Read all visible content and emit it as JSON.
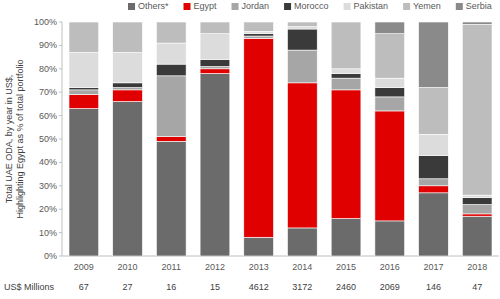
{
  "chart_data": {
    "type": "bar",
    "stacked": true,
    "legend": "top",
    "grid": false,
    "y_label": [
      "Total UAE ODA, by year in US$,",
      "Highlighting Egypt as % of total portfolio"
    ],
    "categories": [
      "2009",
      "2010",
      "2011",
      "2012",
      "2013",
      "2014",
      "2015",
      "2016",
      "2017",
      "2018"
    ],
    "ylim": [
      0,
      100
    ],
    "yticks": [
      {
        "value": 0,
        "label": "0%"
      },
      {
        "value": 10,
        "label": "10%"
      },
      {
        "value": 20,
        "label": "20%"
      },
      {
        "value": 30,
        "label": "30%"
      },
      {
        "value": 40,
        "label": "40%"
      },
      {
        "value": 50,
        "label": "50%"
      },
      {
        "value": 60,
        "label": "60%"
      },
      {
        "value": 70,
        "label": "70%"
      },
      {
        "value": 80,
        "label": "80%"
      },
      {
        "value": 90,
        "label": "90%"
      },
      {
        "value": 100,
        "label": "100%"
      }
    ],
    "series": [
      {
        "name": "Others*",
        "color": "#6b6b6b",
        "values": [
          63,
          66,
          49,
          78,
          8,
          12,
          16,
          15,
          27,
          17
        ]
      },
      {
        "name": "Egypt",
        "color": "#e00000",
        "values": [
          6,
          5,
          2,
          2,
          85,
          62,
          55,
          47,
          3,
          1
        ]
      },
      {
        "name": "Jordan",
        "color": "#a6a6a6",
        "values": [
          2,
          1,
          26,
          1,
          1,
          14,
          5,
          6,
          3,
          4
        ]
      },
      {
        "name": "Morocco",
        "color": "#3a3a3a",
        "values": [
          1,
          2,
          5,
          3,
          1,
          9,
          2,
          4,
          10,
          3
        ]
      },
      {
        "name": "Pakistan",
        "color": "#dcdcdc",
        "values": [
          15,
          13,
          9,
          11,
          1,
          1,
          2,
          4,
          9,
          1
        ]
      },
      {
        "name": "Yemen",
        "color": "#bdbdbd",
        "values": [
          13,
          13,
          9,
          5,
          4,
          2,
          20,
          19,
          20,
          73
        ]
      },
      {
        "name": "Serbia",
        "color": "#8a8a8a",
        "values": [
          0,
          0,
          0,
          0,
          0,
          0,
          0,
          5,
          28,
          1
        ]
      }
    ],
    "totals_label": "US$ Millions",
    "totals": [
      67,
      27,
      16,
      15,
      4612,
      3172,
      2460,
      2069,
      146,
      47
    ]
  }
}
